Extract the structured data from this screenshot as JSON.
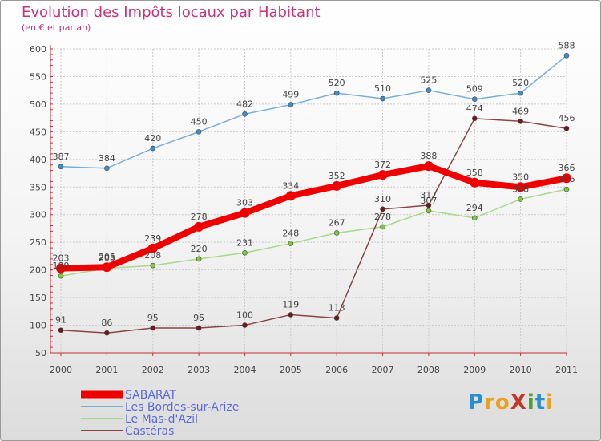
{
  "title": "Evolution des Impôts locaux par Habitant",
  "subtitle": "(en € et par an)",
  "logo": {
    "text": "ProXiti",
    "colors": [
      "#2a8fd0",
      "#e8a020",
      "#e8a020",
      "#c0392b",
      "#4aa02c",
      "#2a8fd0",
      "#e8a020"
    ]
  },
  "chart_data": {
    "type": "line",
    "title": "Evolution des Impôts locaux par Habitant",
    "subtitle": "(en € et par an)",
    "xlabel": "",
    "ylabel": "",
    "x": [
      "2000",
      "2001",
      "2002",
      "2003",
      "2004",
      "2005",
      "2006",
      "2007",
      "2008",
      "2009",
      "2010",
      "2011"
    ],
    "ylim": [
      50,
      600
    ],
    "yticks": [
      50,
      100,
      150,
      200,
      250,
      300,
      350,
      400,
      450,
      500,
      550,
      600
    ],
    "grid": true,
    "legend_position": "bottom-left",
    "series": [
      {
        "name": "SABARAT",
        "color": "#ee0000",
        "width": 8,
        "marker_fill": "#ee0000",
        "values": [
          203,
          205,
          239,
          278,
          303,
          334,
          352,
          372,
          388,
          358,
          350,
          366
        ],
        "labels": [
          "203",
          "205",
          "239",
          "278",
          "303",
          "334",
          "352",
          "372",
          "388",
          "358",
          "350",
          "366"
        ]
      },
      {
        "name": "Les Bordes-sur-Arize",
        "color": "#7aaed6",
        "width": 1.5,
        "marker_fill": "#3a8fd0",
        "values": [
          387,
          384,
          420,
          450,
          482,
          499,
          520,
          510,
          525,
          509,
          520,
          588
        ],
        "labels": [
          "387",
          "384",
          "420",
          "450",
          "482",
          "499",
          "520",
          "510",
          "525",
          "509",
          "520",
          "588"
        ]
      },
      {
        "name": "Le Mas-d'Azil",
        "color": "#a6d98a",
        "width": 1.5,
        "marker_fill": "#7acb3a",
        "values": [
          189,
          203,
          208,
          220,
          231,
          248,
          267,
          278,
          307,
          294,
          328,
          346
        ],
        "labels": [
          "189",
          "203",
          "208",
          "220",
          "231",
          "248",
          "267",
          "278",
          "307",
          "294",
          "328",
          "346"
        ]
      },
      {
        "name": "Castéras",
        "color": "#8a4444",
        "width": 1.5,
        "marker_fill": "#6e1a1a",
        "values": [
          91,
          86,
          95,
          95,
          100,
          119,
          113,
          310,
          317,
          474,
          469,
          456
        ],
        "labels": [
          "91",
          "86",
          "95",
          "95",
          "100",
          "119",
          "113",
          "310",
          "317",
          "474",
          "469",
          "456"
        ]
      }
    ]
  }
}
